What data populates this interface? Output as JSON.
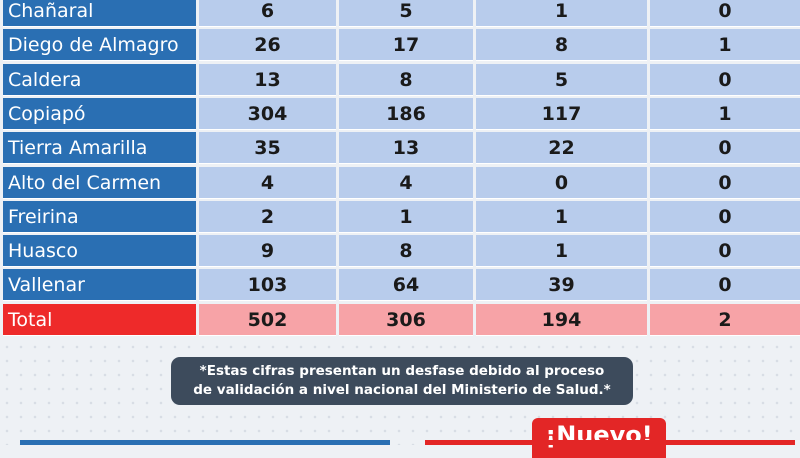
{
  "rows": [
    {
      "name": "Chañaral",
      "c1": "6",
      "c2": "5",
      "c3": "1",
      "c4": "0"
    },
    {
      "name": "Diego de Almagro",
      "c1": "26",
      "c2": "17",
      "c3": "8",
      "c4": "1"
    },
    {
      "name": "Caldera",
      "c1": "13",
      "c2": "8",
      "c3": "5",
      "c4": "0"
    },
    {
      "name": "Copiapó",
      "c1": "304",
      "c2": "186",
      "c3": "117",
      "c4": "1"
    },
    {
      "name": "Tierra Amarilla",
      "c1": "35",
      "c2": "13",
      "c3": "22",
      "c4": "0"
    },
    {
      "name": "Alto del Carmen",
      "c1": "4",
      "c2": "4",
      "c3": "0",
      "c4": "0"
    },
    {
      "name": "Freirina",
      "c1": "2",
      "c2": "1",
      "c3": "1",
      "c4": "0"
    },
    {
      "name": "Huasco",
      "c1": "9",
      "c2": "8",
      "c3": "1",
      "c4": "0"
    },
    {
      "name": "Vallenar",
      "c1": "103",
      "c2": "64",
      "c3": "39",
      "c4": "0"
    }
  ],
  "total": {
    "name": "Total",
    "c1": "502",
    "c2": "306",
    "c3": "194",
    "c4": "2"
  },
  "note": {
    "line1": "*Estas cifras presentan un desfase debido al proceso",
    "line2": "de validación a nivel nacional del Ministerio de Salud.*"
  },
  "badge": "¡Nuevo!",
  "colors": {
    "name_cell": "#2a6fb3",
    "value_cell": "#b8ccec",
    "total_name": "#ee2a2a",
    "total_value": "#f7a3a7",
    "note_bg": "#3d4b5c"
  }
}
